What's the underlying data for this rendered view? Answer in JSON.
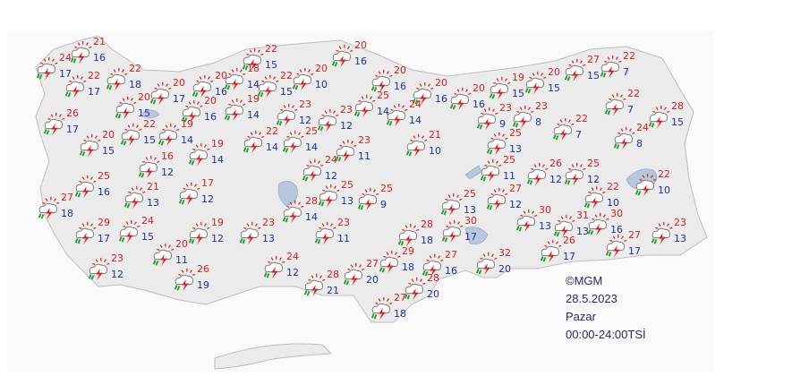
{
  "stations": [
    {
      "max": 21,
      "min": 16
    },
    {
      "max": 24,
      "min": 17
    },
    {
      "max": 22,
      "min": 17
    },
    {
      "max": 22,
      "min": 18
    },
    {
      "max": 20,
      "min": 17
    },
    {
      "max": 20,
      "min": 16
    },
    {
      "max": 22,
      "min": 15
    },
    {
      "max": 18,
      "min": 14
    },
    {
      "max": 22,
      "min": 15
    },
    {
      "max": 20,
      "min": 10
    },
    {
      "max": 20,
      "min": 16
    },
    {
      "max": 20,
      "min": 16
    },
    {
      "max": 20,
      "min": 16
    },
    {
      "max": 20,
      "min": 16
    },
    {
      "max": 19,
      "min": 15
    },
    {
      "max": 20,
      "min": 15
    },
    {
      "max": 27,
      "min": 15
    },
    {
      "max": 22,
      "min": 7
    },
    {
      "max": 26,
      "min": 17
    },
    {
      "max": 20,
      "min": 15
    },
    {
      "max": 20,
      "min": 16
    },
    {
      "max": 19,
      "min": 14
    },
    {
      "max": 22,
      "min": 15
    },
    {
      "max": 19,
      "min": 14
    },
    {
      "max": 23,
      "min": 12
    },
    {
      "max": 23,
      "min": 12
    },
    {
      "max": 25,
      "min": 14
    },
    {
      "max": 24,
      "min": 14
    },
    {
      "max": 23,
      "min": 9
    },
    {
      "max": 23,
      "min": 8
    },
    {
      "max": 22,
      "min": 7
    },
    {
      "max": 28,
      "min": 15
    },
    {
      "max": 22,
      "min": 7
    },
    {
      "max": 24,
      "min": 8
    },
    {
      "max": 20,
      "min": 15
    },
    {
      "max": 22,
      "min": 14
    },
    {
      "max": 25,
      "min": 14
    },
    {
      "max": 23,
      "min": 11
    },
    {
      "max": 21,
      "min": 10
    },
    {
      "max": 25,
      "min": 13
    },
    {
      "max": 19,
      "min": 14
    },
    {
      "max": 16,
      "min": 12
    },
    {
      "max": 24,
      "min": 12
    },
    {
      "max": 25,
      "min": 11
    },
    {
      "max": 26,
      "min": 12
    },
    {
      "max": 25,
      "min": 12
    },
    {
      "max": 22,
      "min": 10
    },
    {
      "max": 25,
      "min": 16
    },
    {
      "max": 21,
      "min": 13
    },
    {
      "max": 17,
      "min": 12
    },
    {
      "max": 25,
      "min": 13
    },
    {
      "max": 25,
      "min": 9
    },
    {
      "max": 27,
      "min": 18
    },
    {
      "max": 28,
      "min": 14
    },
    {
      "max": 25,
      "min": 13
    },
    {
      "max": 27,
      "min": 12
    },
    {
      "max": 22,
      "min": 10
    },
    {
      "max": 30,
      "min": 13
    },
    {
      "max": 31,
      "min": 13
    },
    {
      "max": 30,
      "min": 16
    },
    {
      "max": 23,
      "min": 13
    },
    {
      "max": 29,
      "min": 17
    },
    {
      "max": 24,
      "min": 15
    },
    {
      "max": 19,
      "min": 12
    },
    {
      "max": 23,
      "min": 13
    },
    {
      "max": 23,
      "min": 11
    },
    {
      "max": 28,
      "min": 18
    },
    {
      "max": 30,
      "min": 17
    },
    {
      "max": 27,
      "min": 17
    },
    {
      "max": 26,
      "min": 17
    },
    {
      "max": 20,
      "min": 11
    },
    {
      "max": 23,
      "min": 12
    },
    {
      "max": 29,
      "min": 18
    },
    {
      "max": 27,
      "min": 16
    },
    {
      "max": 32,
      "min": 20
    },
    {
      "max": 24,
      "min": 12
    },
    {
      "max": 27,
      "min": 20
    },
    {
      "max": 26,
      "min": 19
    },
    {
      "max": 28,
      "min": 21
    },
    {
      "max": 28,
      "min": 20
    },
    {
      "max": 27,
      "min": 18
    }
  ],
  "legend": {
    "source": "©MGM",
    "date": "28.5.2023",
    "day": "Pazar",
    "period": "00:00-24:00TSİ"
  }
}
